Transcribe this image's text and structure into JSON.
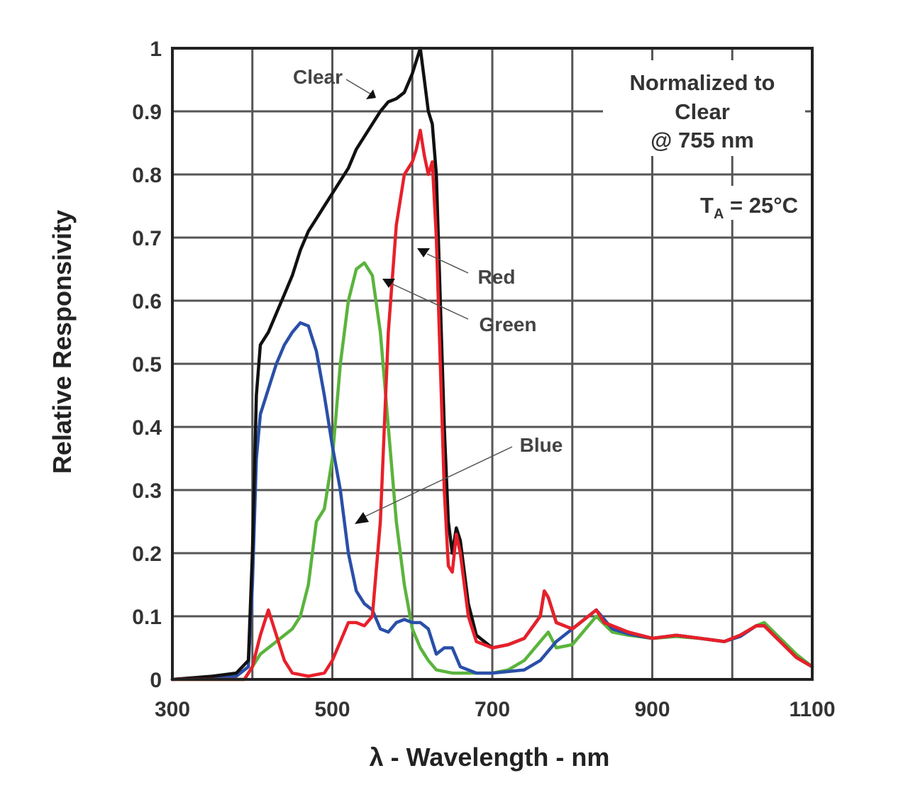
{
  "chart_data": {
    "type": "line",
    "title": "",
    "xlabel": "λ - Wavelength - nm",
    "ylabel": "Relative Responsivity",
    "xlim": [
      300,
      1100
    ],
    "ylim": [
      0,
      1
    ],
    "grid": true,
    "x_ticks": [
      "300",
      "500",
      "700",
      "900",
      "1100"
    ],
    "x_tick_values": [
      300,
      500,
      700,
      900,
      1100
    ],
    "y_ticks": [
      "0",
      "0.1",
      "0.2",
      "0.3",
      "0.4",
      "0.5",
      "0.6",
      "0.7",
      "0.8",
      "0.9",
      "1"
    ],
    "y_tick_values": [
      0,
      0.1,
      0.2,
      0.3,
      0.4,
      0.5,
      0.6,
      0.7,
      0.8,
      0.9,
      1
    ],
    "notes": {
      "normalized_line1": "Normalized to",
      "normalized_line2": "Clear",
      "normalized_line3": "@ 755 nm",
      "temp_prefix": "T",
      "temp_sub": "A",
      "temp_suffix": " = 25°C"
    },
    "series": [
      {
        "name": "Clear",
        "color": "#111111",
        "x": [
          300,
          350,
          380,
          395,
          400,
          405,
          410,
          420,
          430,
          440,
          450,
          460,
          470,
          480,
          490,
          500,
          510,
          520,
          530,
          540,
          550,
          560,
          570,
          580,
          590,
          600,
          605,
          610,
          615,
          620,
          625,
          630,
          635,
          640,
          645,
          650,
          655,
          660,
          670,
          680,
          700,
          720,
          740,
          760,
          765,
          770,
          780,
          800,
          820,
          830,
          840,
          870,
          900,
          930,
          960,
          990,
          1010,
          1030,
          1040,
          1060,
          1080,
          1100
        ],
        "y": [
          0,
          0.005,
          0.01,
          0.03,
          0.2,
          0.45,
          0.53,
          0.55,
          0.58,
          0.61,
          0.64,
          0.68,
          0.71,
          0.73,
          0.75,
          0.77,
          0.79,
          0.81,
          0.84,
          0.86,
          0.88,
          0.9,
          0.915,
          0.92,
          0.93,
          0.96,
          0.98,
          1.0,
          0.95,
          0.9,
          0.88,
          0.8,
          0.6,
          0.4,
          0.25,
          0.2,
          0.24,
          0.22,
          0.12,
          0.07,
          0.05,
          0.055,
          0.065,
          0.1,
          0.14,
          0.13,
          0.09,
          0.08,
          0.1,
          0.11,
          0.09,
          0.075,
          0.065,
          0.07,
          0.065,
          0.06,
          0.07,
          0.085,
          0.085,
          0.06,
          0.035,
          0.02
        ]
      },
      {
        "name": "Red",
        "color": "#e8202a",
        "x": [
          300,
          390,
          400,
          410,
          420,
          430,
          440,
          450,
          470,
          490,
          500,
          510,
          520,
          530,
          540,
          550,
          560,
          570,
          580,
          590,
          600,
          605,
          610,
          615,
          620,
          625,
          630,
          635,
          640,
          645,
          650,
          655,
          660,
          670,
          680,
          700,
          720,
          740,
          760,
          765,
          770,
          780,
          800,
          820,
          830,
          840,
          870,
          900,
          930,
          960,
          990,
          1010,
          1030,
          1040,
          1060,
          1080,
          1100
        ],
        "y": [
          0,
          0,
          0.02,
          0.07,
          0.11,
          0.07,
          0.03,
          0.01,
          0.005,
          0.01,
          0.03,
          0.06,
          0.09,
          0.09,
          0.085,
          0.1,
          0.25,
          0.55,
          0.72,
          0.8,
          0.82,
          0.84,
          0.87,
          0.83,
          0.8,
          0.82,
          0.7,
          0.5,
          0.3,
          0.18,
          0.17,
          0.23,
          0.2,
          0.1,
          0.06,
          0.05,
          0.055,
          0.065,
          0.1,
          0.14,
          0.13,
          0.09,
          0.08,
          0.1,
          0.11,
          0.09,
          0.075,
          0.065,
          0.07,
          0.065,
          0.06,
          0.07,
          0.085,
          0.085,
          0.06,
          0.035,
          0.02
        ]
      },
      {
        "name": "Green",
        "color": "#5ab43c",
        "x": [
          300,
          390,
          400,
          410,
          430,
          450,
          460,
          470,
          480,
          490,
          500,
          510,
          520,
          530,
          540,
          550,
          560,
          570,
          580,
          590,
          600,
          610,
          620,
          630,
          650,
          670,
          700,
          720,
          740,
          760,
          770,
          780,
          800,
          820,
          830,
          850,
          870,
          900,
          930,
          960,
          990,
          1010,
          1030,
          1040,
          1060,
          1080,
          1100
        ],
        "y": [
          0,
          0,
          0.02,
          0.04,
          0.06,
          0.08,
          0.1,
          0.15,
          0.25,
          0.27,
          0.35,
          0.5,
          0.6,
          0.65,
          0.66,
          0.64,
          0.55,
          0.4,
          0.25,
          0.15,
          0.08,
          0.05,
          0.03,
          0.015,
          0.01,
          0.01,
          0.01,
          0.015,
          0.03,
          0.06,
          0.075,
          0.05,
          0.055,
          0.085,
          0.1,
          0.075,
          0.07,
          0.065,
          0.068,
          0.065,
          0.06,
          0.07,
          0.085,
          0.09,
          0.065,
          0.04,
          0.02
        ]
      },
      {
        "name": "Blue",
        "color": "#2a4fa8",
        "x": [
          300,
          380,
          395,
          400,
          405,
          410,
          420,
          430,
          440,
          450,
          460,
          470,
          480,
          490,
          500,
          510,
          520,
          530,
          540,
          550,
          560,
          570,
          580,
          590,
          600,
          610,
          620,
          630,
          640,
          650,
          660,
          680,
          700,
          740,
          760,
          780,
          800,
          820,
          830,
          850,
          870,
          900,
          930,
          960,
          990,
          1010,
          1030,
          1040,
          1060,
          1080,
          1100
        ],
        "y": [
          0,
          0.005,
          0.02,
          0.15,
          0.35,
          0.42,
          0.46,
          0.5,
          0.53,
          0.55,
          0.565,
          0.56,
          0.52,
          0.45,
          0.37,
          0.3,
          0.2,
          0.14,
          0.12,
          0.11,
          0.08,
          0.075,
          0.09,
          0.095,
          0.09,
          0.09,
          0.08,
          0.04,
          0.05,
          0.05,
          0.02,
          0.01,
          0.01,
          0.015,
          0.03,
          0.06,
          0.08,
          0.1,
          0.11,
          0.08,
          0.072,
          0.065,
          0.07,
          0.065,
          0.06,
          0.068,
          0.085,
          0.085,
          0.06,
          0.035,
          0.02
        ]
      }
    ],
    "annotations": {
      "clear": "Clear",
      "red": "Red",
      "green": "Green",
      "blue": "Blue"
    }
  }
}
